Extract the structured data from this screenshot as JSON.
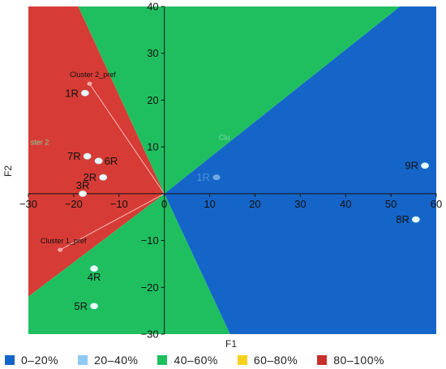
{
  "chart_data": {
    "type": "scatter",
    "title": "",
    "xlabel": "F1",
    "ylabel": "F2",
    "xlim": [
      -30,
      60
    ],
    "ylim": [
      -30,
      40
    ],
    "xticks": [
      -30,
      -20,
      -10,
      0,
      10,
      20,
      30,
      40,
      50,
      60
    ],
    "yticks": [
      -30,
      -20,
      -10,
      0,
      10,
      20,
      30,
      40
    ],
    "xtick_labels": [
      "−30",
      "−20",
      "−10",
      "0",
      "10",
      "20",
      "30",
      "40",
      "50",
      "60"
    ],
    "ytick_labels": [
      "−30",
      "−20",
      "−10",
      "0",
      "10",
      "20",
      "30",
      "40"
    ],
    "grid": false,
    "points": [
      {
        "label": "1R",
        "x": -17.5,
        "y": 21.5
      },
      {
        "label": "7R",
        "x": -17,
        "y": 8
      },
      {
        "label": "6R",
        "x": -14.5,
        "y": 7
      },
      {
        "label": "2R",
        "x": -13.5,
        "y": 3.5
      },
      {
        "label": "3R",
        "x": -18,
        "y": 0
      },
      {
        "label": "4R",
        "x": -15.5,
        "y": -16
      },
      {
        "label": "5R",
        "x": -15.5,
        "y": -24
      },
      {
        "label": "9R",
        "x": 57.5,
        "y": 6
      },
      {
        "label": "8R",
        "x": 55.5,
        "y": -5.5
      },
      {
        "label": "1R",
        "x": 11.5,
        "y": 3.5
      }
    ],
    "cluster_prefs": [
      {
        "label": "Cluster 2_pref",
        "x": -16.5,
        "y": 23.5
      },
      {
        "label": "Cluster 1_pref",
        "x": -23,
        "y": -12
      }
    ],
    "faint_labels": [
      {
        "label": "Clu",
        "x": 12,
        "y": 11.5
      },
      {
        "label": "ster 2",
        "x": -29.5,
        "y": 10.5
      }
    ],
    "regions": [
      {
        "class": "80-100%",
        "color": "#d63c35",
        "polygon": [
          [
            -30,
            -22
          ],
          [
            0,
            0
          ],
          [
            -19,
            40
          ],
          [
            -30,
            40
          ]
        ]
      },
      {
        "class": "40-60%",
        "color": "#1fbf60",
        "polygon": [
          [
            -19,
            40
          ],
          [
            52,
            40
          ],
          [
            0,
            0
          ]
        ]
      },
      {
        "class": "0-20%",
        "color": "#1565c8",
        "polygon": [
          [
            52,
            40
          ],
          [
            60,
            40
          ],
          [
            60,
            -30
          ],
          [
            14.5,
            -30
          ],
          [
            0,
            0
          ]
        ]
      },
      {
        "class": "40-60%",
        "color": "#1fbf60",
        "polygon": [
          [
            -30,
            -22
          ],
          [
            0,
            0
          ],
          [
            14.5,
            -30
          ],
          [
            -30,
            -30
          ]
        ]
      }
    ],
    "legend": [
      {
        "label": "0–20%",
        "color": "#1565c8"
      },
      {
        "label": "20–40%",
        "color": "#8ec9f5"
      },
      {
        "label": "40–60%",
        "color": "#1fbf60"
      },
      {
        "label": "60–80%",
        "color": "#f6d21c"
      },
      {
        "label": "80–100%",
        "color": "#c8302a"
      }
    ],
    "legend_position": "bottom"
  }
}
